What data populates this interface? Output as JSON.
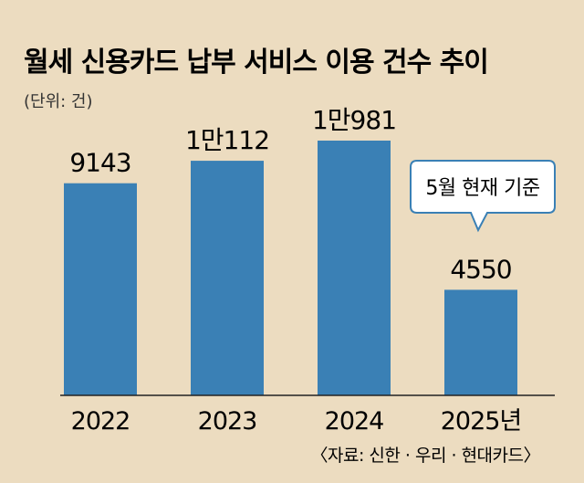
{
  "chart_data": {
    "type": "bar",
    "title": "월세 신용카드 납부 서비스 이용 건수 추이",
    "unit": "(단위: 건)",
    "categories": [
      "2022",
      "2023",
      "2024",
      "2025년"
    ],
    "values": [
      9143,
      10112,
      10981,
      4550
    ],
    "value_labels": [
      "9143",
      "1만112",
      "1만981",
      "4550"
    ],
    "callout": "5월 현재 기준",
    "source": "〈자료: 신한 · 우리 · 현대카드〉",
    "ylim": [
      0,
      10981
    ],
    "bar_color": "#3a80b5",
    "background_color": "#ecdcc0",
    "grid": false
  }
}
